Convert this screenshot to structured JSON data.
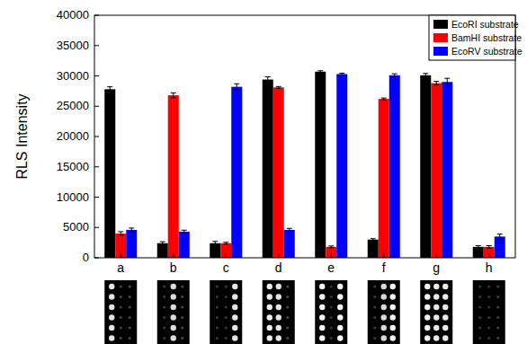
{
  "chart_data": {
    "type": "bar",
    "y_label": "RLS Intensity",
    "categories": [
      "a",
      "b",
      "c",
      "d",
      "e",
      "f",
      "g",
      "h"
    ],
    "series": [
      {
        "name": "EcoRI substrate",
        "color": "#000000",
        "values": [
          27800,
          2400,
          2400,
          29400,
          30700,
          3000,
          30100,
          1800
        ],
        "errors": [
          400,
          250,
          300,
          450,
          150,
          150,
          300,
          200
        ]
      },
      {
        "name": "BamHI substrate",
        "color": "#ff0000",
        "values": [
          4000,
          26800,
          2400,
          28100,
          1800,
          26200,
          28800,
          1800
        ],
        "errors": [
          300,
          400,
          150,
          150,
          150,
          150,
          300,
          200
        ]
      },
      {
        "name": "EcoRV substrate",
        "color": "#0000ff",
        "values": [
          4600,
          4300,
          28200,
          4600,
          30300,
          30100,
          29000,
          3500
        ],
        "errors": [
          300,
          250,
          500,
          250,
          150,
          250,
          600,
          400
        ]
      }
    ],
    "ylim": [
      0,
      40000
    ],
    "yticks": [
      0,
      5000,
      10000,
      15000,
      20000,
      25000,
      30000,
      35000,
      40000
    ],
    "legend": "upper right",
    "grid": false
  }
}
